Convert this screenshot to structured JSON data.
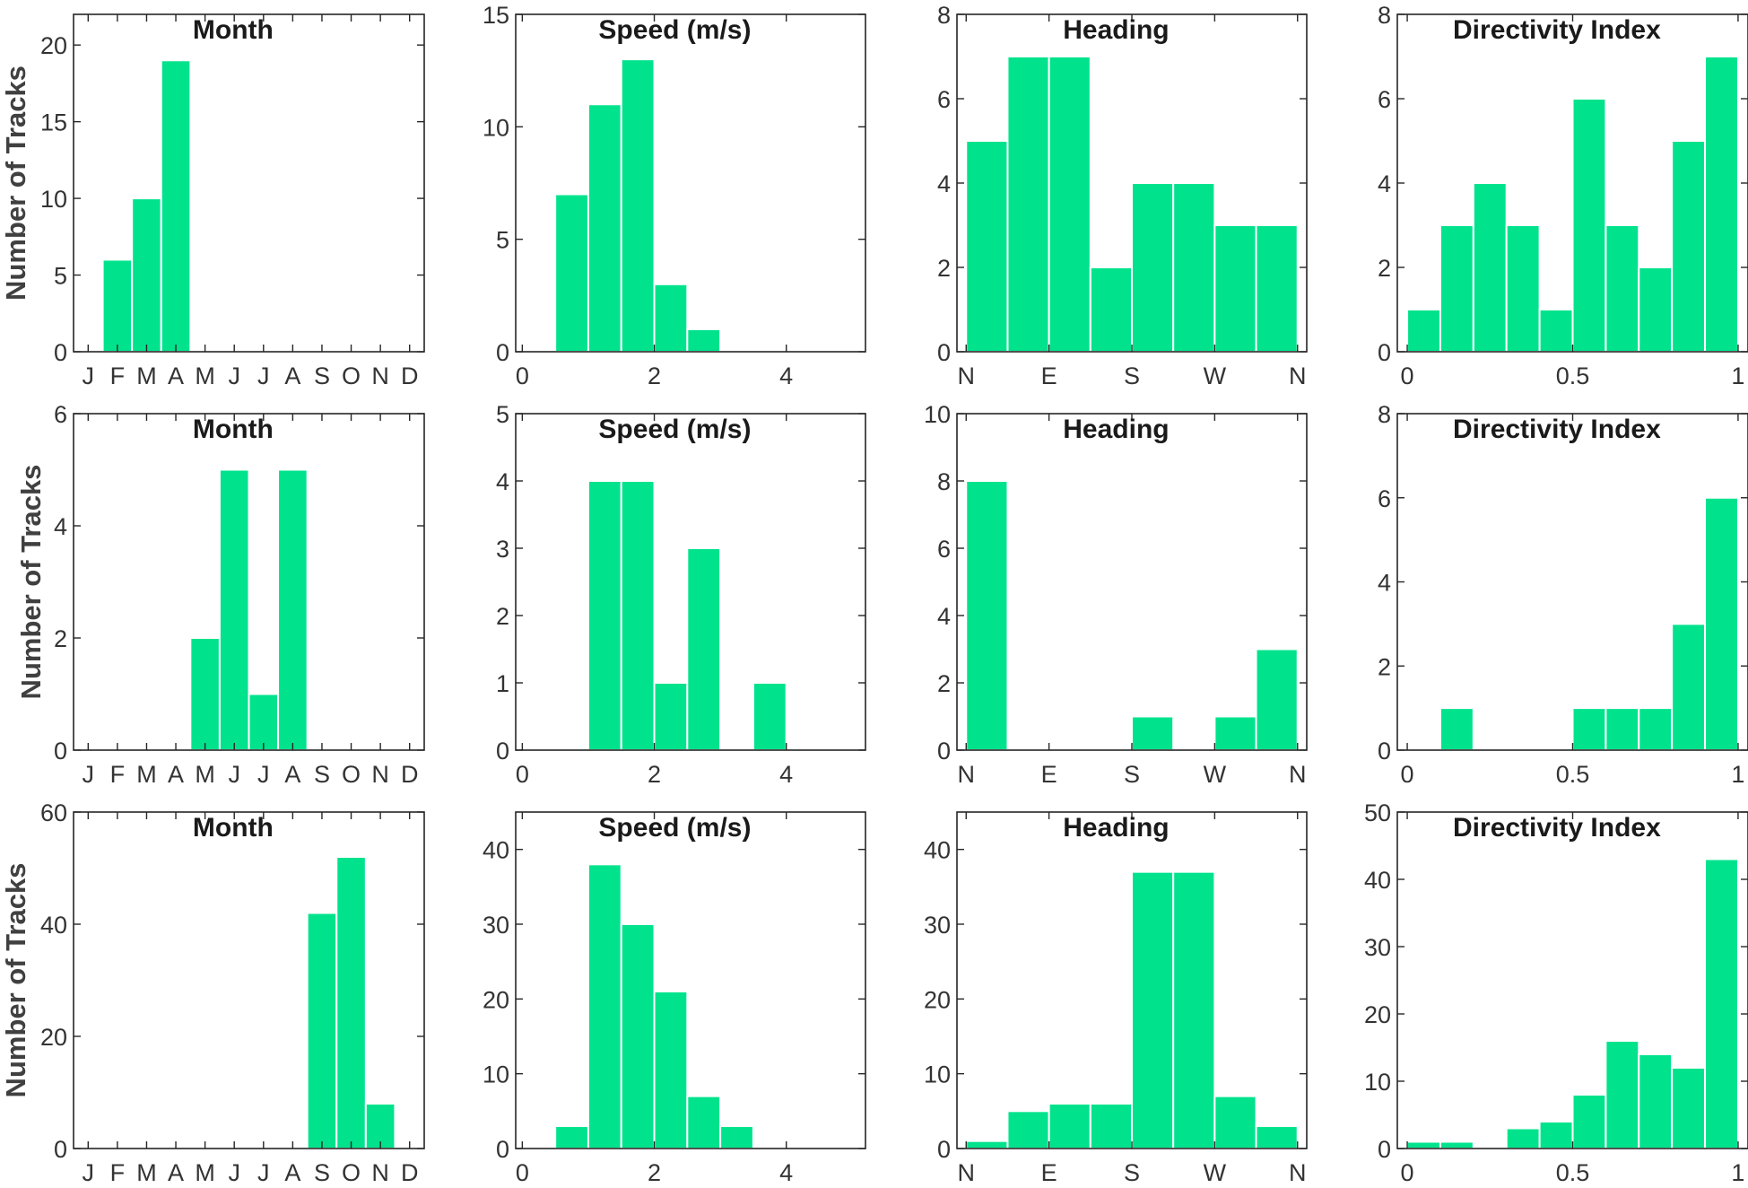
{
  "figure": {
    "bar_color": "#00e38c",
    "ylabel": "Number of Tracks"
  },
  "chart_data": [
    {
      "type": "bar",
      "title": "Month",
      "ylabel": "Number of Tracks",
      "xlabel": "",
      "xlim": [
        0.5,
        12.5
      ],
      "ylim": [
        0,
        22
      ],
      "xticks": [
        1,
        2,
        3,
        4,
        5,
        6,
        7,
        8,
        9,
        10,
        11,
        12
      ],
      "xtick_labels": [
        "J",
        "F",
        "M",
        "A",
        "M",
        "J",
        "J",
        "A",
        "S",
        "O",
        "N",
        "D"
      ],
      "yticks": [
        0,
        5,
        10,
        15,
        20
      ],
      "ytick_labels": [
        "0",
        "5",
        "10",
        "15",
        "20"
      ],
      "bins": [
        [
          1.5,
          2.5
        ],
        [
          2.5,
          3.5
        ],
        [
          3.5,
          4.5
        ]
      ],
      "values": [
        6,
        10,
        19
      ]
    },
    {
      "type": "bar",
      "title": "Speed (m/s)",
      "xlabel": "",
      "ylabel": "",
      "xlim": [
        -0.1,
        5.2
      ],
      "ylim": [
        0,
        15
      ],
      "xticks": [
        0,
        2,
        4
      ],
      "xtick_labels": [
        "0",
        "2",
        "4"
      ],
      "yticks": [
        0,
        5,
        10,
        15
      ],
      "ytick_labels": [
        "0",
        "5",
        "10",
        "15"
      ],
      "bins": [
        [
          0.5,
          1.0
        ],
        [
          1.0,
          1.5
        ],
        [
          1.5,
          2.0
        ],
        [
          2.0,
          2.5
        ],
        [
          2.5,
          3.0
        ]
      ],
      "values": [
        7,
        11,
        13,
        3,
        1
      ]
    },
    {
      "type": "bar",
      "title": "Heading",
      "xlabel": "",
      "ylabel": "",
      "xlim": [
        -10,
        370
      ],
      "ylim": [
        0,
        8
      ],
      "xticks": [
        0,
        90,
        180,
        270,
        360
      ],
      "xtick_labels": [
        "N",
        "E",
        "S",
        "W",
        "N"
      ],
      "yticks": [
        0,
        2,
        4,
        6,
        8
      ],
      "ytick_labels": [
        "0",
        "2",
        "4",
        "6",
        "8"
      ],
      "bins": [
        [
          0,
          45
        ],
        [
          45,
          90
        ],
        [
          90,
          135
        ],
        [
          135,
          180
        ],
        [
          180,
          225
        ],
        [
          225,
          270
        ],
        [
          270,
          315
        ],
        [
          315,
          360
        ]
      ],
      "values": [
        5,
        7,
        7,
        2,
        4,
        4,
        3,
        3
      ]
    },
    {
      "type": "bar",
      "title": "Directivity Index",
      "xlabel": "",
      "ylabel": "",
      "xlim": [
        -0.03,
        1.03
      ],
      "ylim": [
        0,
        8
      ],
      "xticks": [
        0,
        0.5,
        1
      ],
      "xtick_labels": [
        "0",
        "0.5",
        "1"
      ],
      "yticks": [
        0,
        2,
        4,
        6,
        8
      ],
      "ytick_labels": [
        "0",
        "2",
        "4",
        "6",
        "8"
      ],
      "bins": [
        [
          0,
          0.1
        ],
        [
          0.1,
          0.2
        ],
        [
          0.2,
          0.3
        ],
        [
          0.3,
          0.4
        ],
        [
          0.4,
          0.5
        ],
        [
          0.5,
          0.6
        ],
        [
          0.6,
          0.7
        ],
        [
          0.7,
          0.8
        ],
        [
          0.8,
          0.9
        ],
        [
          0.9,
          1.0
        ]
      ],
      "values": [
        1,
        3,
        4,
        3,
        1,
        6,
        3,
        2,
        5,
        7
      ]
    },
    {
      "type": "bar",
      "title": "Month",
      "ylabel": "Number of Tracks",
      "xlabel": "",
      "xlim": [
        0.5,
        12.5
      ],
      "ylim": [
        0,
        6
      ],
      "xticks": [
        1,
        2,
        3,
        4,
        5,
        6,
        7,
        8,
        9,
        10,
        11,
        12
      ],
      "xtick_labels": [
        "J",
        "F",
        "M",
        "A",
        "M",
        "J",
        "J",
        "A",
        "S",
        "O",
        "N",
        "D"
      ],
      "yticks": [
        0,
        2,
        4,
        6
      ],
      "ytick_labels": [
        "0",
        "2",
        "4",
        "6"
      ],
      "bins": [
        [
          4.5,
          5.5
        ],
        [
          5.5,
          6.5
        ],
        [
          6.5,
          7.5
        ],
        [
          7.5,
          8.5
        ]
      ],
      "values": [
        2,
        5,
        1,
        5
      ]
    },
    {
      "type": "bar",
      "title": "Speed (m/s)",
      "xlabel": "",
      "ylabel": "",
      "xlim": [
        -0.1,
        5.2
      ],
      "ylim": [
        0,
        5
      ],
      "xticks": [
        0,
        2,
        4
      ],
      "xtick_labels": [
        "0",
        "2",
        "4"
      ],
      "yticks": [
        0,
        1,
        2,
        3,
        4,
        5
      ],
      "ytick_labels": [
        "0",
        "1",
        "2",
        "3",
        "4",
        "5"
      ],
      "bins": [
        [
          1.0,
          1.5
        ],
        [
          1.5,
          2.0
        ],
        [
          2.0,
          2.5
        ],
        [
          2.5,
          3.0
        ],
        [
          3.0,
          3.5
        ],
        [
          3.5,
          4.0
        ]
      ],
      "values": [
        4,
        4,
        1,
        3,
        0,
        1
      ]
    },
    {
      "type": "bar",
      "title": "Heading",
      "xlabel": "",
      "ylabel": "",
      "xlim": [
        -10,
        370
      ],
      "ylim": [
        0,
        10
      ],
      "xticks": [
        0,
        90,
        180,
        270,
        360
      ],
      "xtick_labels": [
        "N",
        "E",
        "S",
        "W",
        "N"
      ],
      "yticks": [
        0,
        2,
        4,
        6,
        8,
        10
      ],
      "ytick_labels": [
        "0",
        "2",
        "4",
        "6",
        "8",
        "10"
      ],
      "bins": [
        [
          0,
          45
        ],
        [
          180,
          225
        ],
        [
          270,
          315
        ],
        [
          315,
          360
        ]
      ],
      "values": [
        8,
        1,
        1,
        3
      ]
    },
    {
      "type": "bar",
      "title": "Directivity Index",
      "xlabel": "",
      "ylabel": "",
      "xlim": [
        -0.03,
        1.03
      ],
      "ylim": [
        0,
        8
      ],
      "xticks": [
        0,
        0.5,
        1
      ],
      "xtick_labels": [
        "0",
        "0.5",
        "1"
      ],
      "yticks": [
        0,
        2,
        4,
        6,
        8
      ],
      "ytick_labels": [
        "0",
        "2",
        "4",
        "6",
        "8"
      ],
      "bins": [
        [
          0.1,
          0.2
        ],
        [
          0.5,
          0.6
        ],
        [
          0.6,
          0.7
        ],
        [
          0.7,
          0.8
        ],
        [
          0.8,
          0.9
        ],
        [
          0.9,
          1.0
        ]
      ],
      "values": [
        1,
        1,
        1,
        1,
        3,
        6
      ]
    },
    {
      "type": "bar",
      "title": "Month",
      "ylabel": "Number of Tracks",
      "xlabel": "",
      "xlim": [
        0.5,
        12.5
      ],
      "ylim": [
        0,
        60
      ],
      "xticks": [
        1,
        2,
        3,
        4,
        5,
        6,
        7,
        8,
        9,
        10,
        11,
        12
      ],
      "xtick_labels": [
        "J",
        "F",
        "M",
        "A",
        "M",
        "J",
        "J",
        "A",
        "S",
        "O",
        "N",
        "D"
      ],
      "yticks": [
        0,
        20,
        40,
        60
      ],
      "ytick_labels": [
        "0",
        "20",
        "40",
        "60"
      ],
      "bins": [
        [
          8.5,
          9.5
        ],
        [
          9.5,
          10.5
        ],
        [
          10.5,
          11.5
        ]
      ],
      "values": [
        42,
        52,
        8
      ]
    },
    {
      "type": "bar",
      "title": "Speed (m/s)",
      "xlabel": "",
      "ylabel": "",
      "xlim": [
        -0.1,
        5.2
      ],
      "ylim": [
        0,
        45
      ],
      "xticks": [
        0,
        2,
        4
      ],
      "xtick_labels": [
        "0",
        "2",
        "4"
      ],
      "yticks": [
        0,
        10,
        20,
        30,
        40
      ],
      "ytick_labels": [
        "0",
        "10",
        "20",
        "30",
        "40"
      ],
      "bins": [
        [
          0.5,
          1.0
        ],
        [
          1.0,
          1.5
        ],
        [
          1.5,
          2.0
        ],
        [
          2.0,
          2.5
        ],
        [
          2.5,
          3.0
        ],
        [
          3.0,
          3.5
        ]
      ],
      "values": [
        3,
        38,
        30,
        21,
        7,
        3
      ]
    },
    {
      "type": "bar",
      "title": "Heading",
      "xlabel": "",
      "ylabel": "",
      "xlim": [
        -10,
        370
      ],
      "ylim": [
        0,
        45
      ],
      "xticks": [
        0,
        90,
        180,
        270,
        360
      ],
      "xtick_labels": [
        "N",
        "E",
        "S",
        "W",
        "N"
      ],
      "yticks": [
        0,
        10,
        20,
        30,
        40
      ],
      "ytick_labels": [
        "0",
        "10",
        "20",
        "30",
        "40"
      ],
      "bins": [
        [
          0,
          45
        ],
        [
          45,
          90
        ],
        [
          90,
          135
        ],
        [
          135,
          180
        ],
        [
          180,
          225
        ],
        [
          225,
          270
        ],
        [
          270,
          315
        ],
        [
          315,
          360
        ]
      ],
      "values": [
        1,
        5,
        6,
        6,
        37,
        37,
        7,
        3
      ]
    },
    {
      "type": "bar",
      "title": "Directivity Index",
      "xlabel": "",
      "ylabel": "",
      "xlim": [
        -0.03,
        1.03
      ],
      "ylim": [
        0,
        50
      ],
      "xticks": [
        0,
        0.5,
        1
      ],
      "xtick_labels": [
        "0",
        "0.5",
        "1"
      ],
      "yticks": [
        0,
        10,
        20,
        30,
        40,
        50
      ],
      "ytick_labels": [
        "0",
        "10",
        "20",
        "30",
        "40",
        "50"
      ],
      "bins": [
        [
          0,
          0.1
        ],
        [
          0.1,
          0.2
        ],
        [
          0.3,
          0.4
        ],
        [
          0.4,
          0.5
        ],
        [
          0.5,
          0.6
        ],
        [
          0.6,
          0.7
        ],
        [
          0.7,
          0.8
        ],
        [
          0.8,
          0.9
        ],
        [
          0.9,
          1.0
        ]
      ],
      "values": [
        1,
        1,
        3,
        4,
        8,
        16,
        14,
        12,
        43
      ]
    }
  ]
}
